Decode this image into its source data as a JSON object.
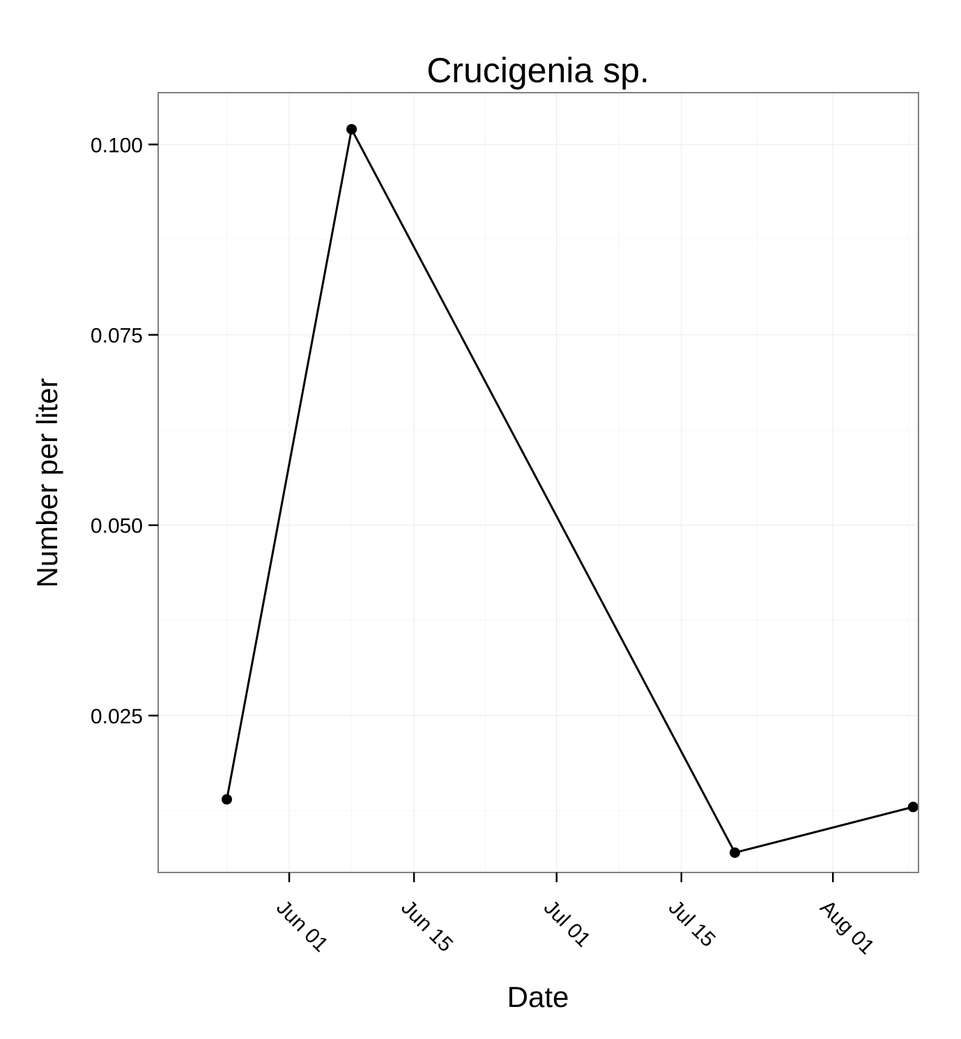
{
  "chart_data": {
    "type": "line",
    "title": "Crucigenia sp.",
    "xlabel": "Date",
    "ylabel": "Number per liter",
    "grid": true,
    "legend": "none",
    "x_tick_labels": [
      "Jun 01",
      "Jun 15",
      "Jul 01",
      "Jul 15",
      "Aug 01"
    ],
    "x_tick_days": [
      151,
      165,
      181,
      195,
      212
    ],
    "xlim_days": [
      136.3,
      221.6
    ],
    "y_tick_labels": [
      "0.025",
      "0.050",
      "0.075",
      "0.100"
    ],
    "y_ticks": [
      0.025,
      0.05,
      0.075,
      0.1
    ],
    "ylim": [
      0.0044,
      0.1068
    ],
    "series": [
      {
        "name": "Crucigenia sp.",
        "x_labels": [
          "May 24",
          "Jun 07",
          "Jul 21",
          "Aug 10"
        ],
        "x_days": [
          144,
          158,
          201,
          221
        ],
        "values": [
          0.014,
          0.102,
          0.007,
          0.013
        ]
      }
    ]
  }
}
